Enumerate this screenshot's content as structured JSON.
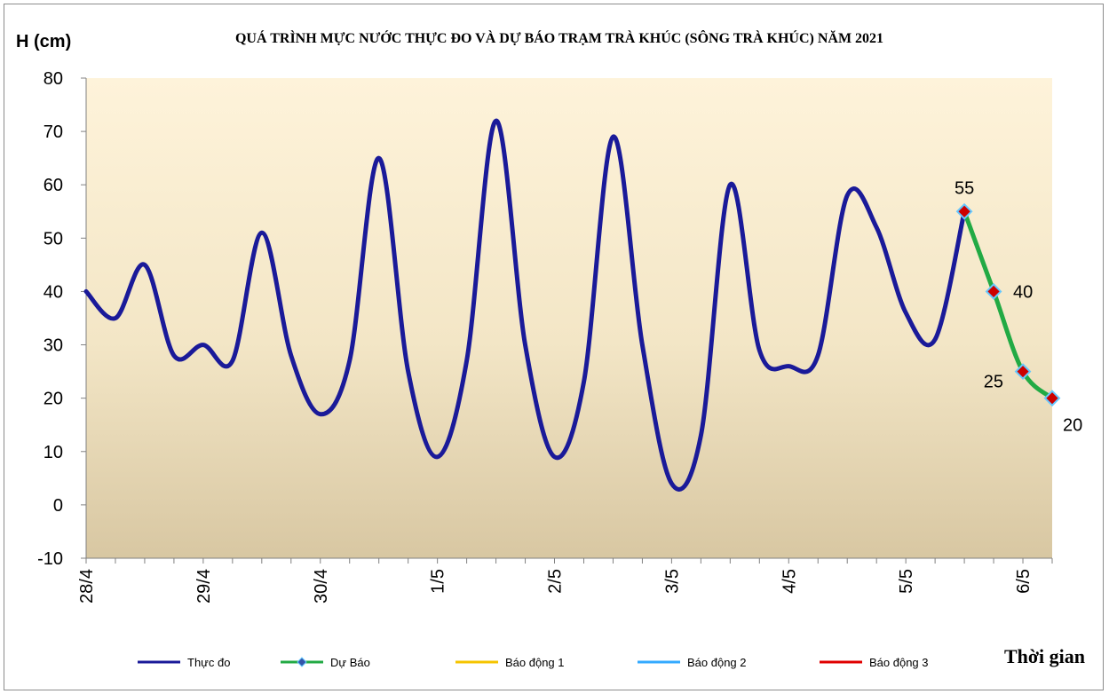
{
  "chart_data": {
    "type": "line",
    "title": "QUÁ TRÌNH MỰC NƯỚC THỰC ĐO VÀ DỰ BÁO TRẠM TRÀ KHÚC (SÔNG TRÀ KHÚC) NĂM 2021",
    "ylabel": "H (cm)",
    "xlabel": "Thời gian",
    "ylim": [
      -10,
      80
    ],
    "yticks": [
      -10,
      0,
      10,
      20,
      30,
      40,
      50,
      60,
      70,
      80
    ],
    "x_slots": 33,
    "xtick_labels": [
      "28/4",
      "29/4",
      "30/4",
      "1/5",
      "2/5",
      "3/5",
      "4/5",
      "5/5",
      "6/5"
    ],
    "xtick_label_slots": [
      0,
      4,
      8,
      12,
      16,
      20,
      24,
      28,
      32
    ],
    "series": [
      {
        "name": "Thực đo",
        "color": "#1a1a99",
        "x": [
          0,
          1,
          2,
          3,
          4,
          5,
          6,
          7,
          8,
          9,
          10,
          11,
          12,
          13,
          14,
          15,
          16,
          17,
          18,
          19,
          20,
          21,
          22,
          23,
          24,
          25,
          26,
          27,
          28,
          29,
          30
        ],
        "values": [
          40,
          35,
          45,
          28,
          30,
          27,
          51,
          28,
          17,
          27,
          65,
          25,
          9,
          27,
          72,
          30,
          9,
          23,
          69,
          30,
          4,
          13,
          60,
          29,
          26,
          28,
          58,
          52,
          36,
          31,
          55
        ]
      },
      {
        "name": "Dự Báo",
        "color": "#22aa44",
        "marker_color": "#cc0000",
        "x": [
          30,
          31,
          32,
          33
        ],
        "values": [
          55,
          40,
          25,
          20
        ],
        "labels": [
          "55",
          "40",
          "25",
          "20"
        ]
      },
      {
        "name": "Báo động 1",
        "color": "#f5c400",
        "values": []
      },
      {
        "name": "Báo động 2",
        "color": "#33aaff",
        "values": []
      },
      {
        "name": "Báo động 3",
        "color": "#e00000",
        "values": []
      }
    ],
    "legend_position": "bottom",
    "background": "gradient from #fdf1d9 to #d9c8a4"
  }
}
